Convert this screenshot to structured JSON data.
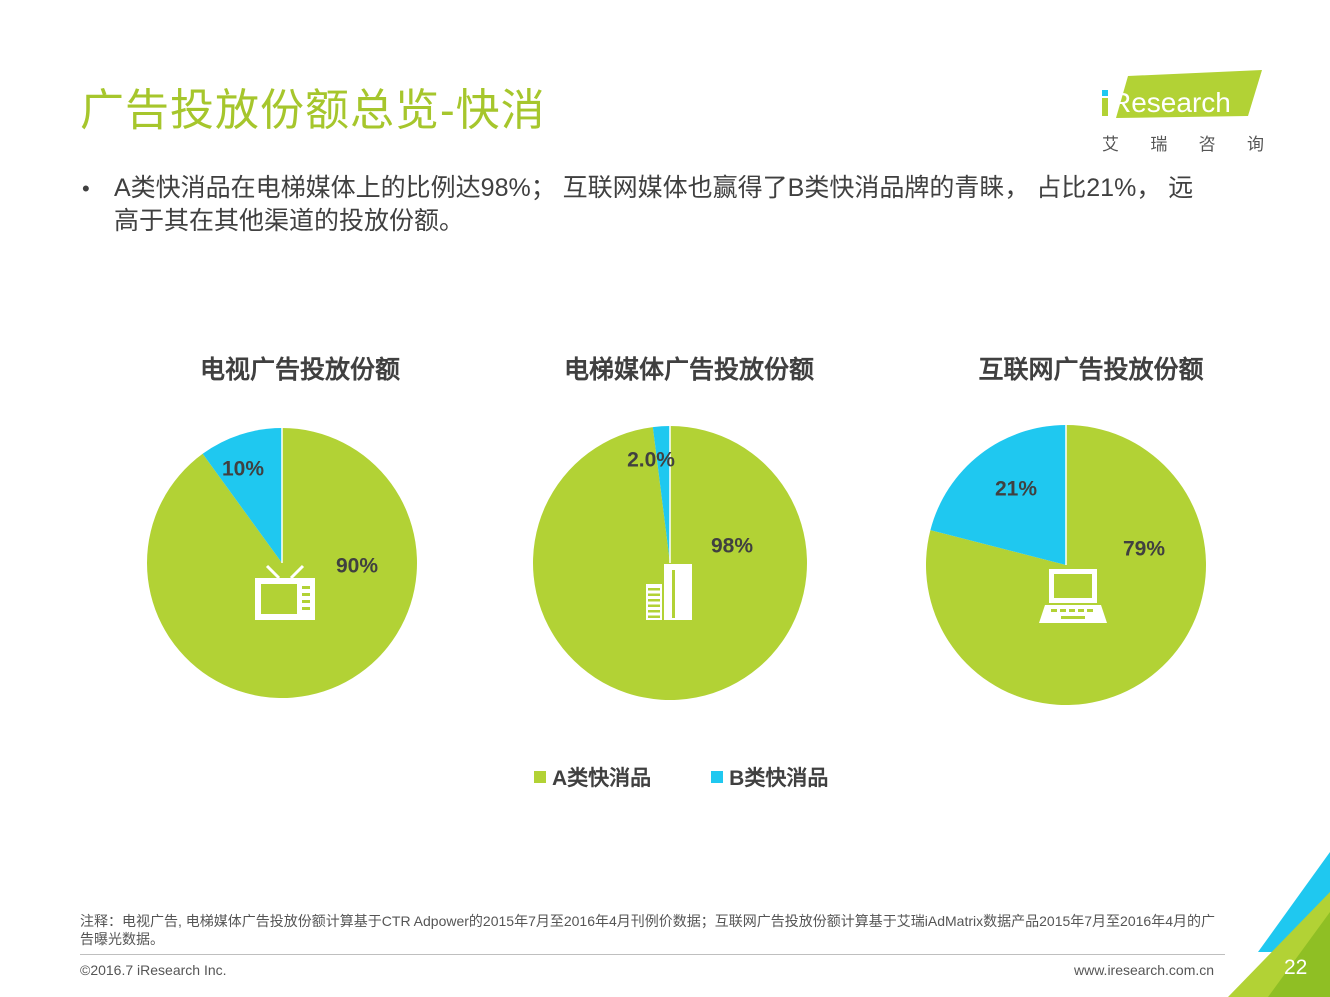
{
  "page": {
    "title": "广告投放份额总览-快消",
    "bullet_text": "A类快消品在电梯媒体上的比例达98%； 互联网媒体也赢得了B类快消品牌的青睐， 占比21%， 远高于其在其他渠道的投放份额。",
    "note": "注释：电视广告, 电梯媒体广告投放份额计算基于CTR Adpower的2015年7月至2016年4月刊例价数据；互联网广告投放份额计算基于艾瑞iAdMatrix数据产品2015年7月至2016年4月的广告曝光数据。",
    "copyright": "©2016.7 iResearch Inc.",
    "website": "www.iresearch.com.cn",
    "page_number": "22"
  },
  "logo": {
    "brand": "iResearch",
    "sub_chars": [
      "艾",
      "瑞",
      "咨",
      "询"
    ]
  },
  "colors": {
    "a_green": "#b2d235",
    "b_cyan": "#1fc8f0",
    "title_green": "#a6c62c"
  },
  "legend": [
    {
      "label": "A类快消品",
      "color": "#b2d235"
    },
    {
      "label": "B类快消品",
      "color": "#1fc8f0"
    }
  ],
  "chart_data": [
    {
      "type": "pie",
      "title": "电视广告投放份额",
      "icon": "tv-icon",
      "series": [
        {
          "name": "A类快消品",
          "value": 90,
          "label": "90%"
        },
        {
          "name": "B类快消品",
          "value": 10,
          "label": "10%"
        }
      ]
    },
    {
      "type": "pie",
      "title": "电梯媒体广告投放份额",
      "icon": "building-icon",
      "series": [
        {
          "name": "A类快消品",
          "value": 98,
          "label": "98%"
        },
        {
          "name": "B类快消品",
          "value": 2,
          "label": "2.0%"
        }
      ]
    },
    {
      "type": "pie",
      "title": "互联网广告投放份额",
      "icon": "laptop-icon",
      "series": [
        {
          "name": "A类快消品",
          "value": 79,
          "label": "79%"
        },
        {
          "name": "B类快消品",
          "value": 21,
          "label": "21%"
        }
      ]
    }
  ]
}
